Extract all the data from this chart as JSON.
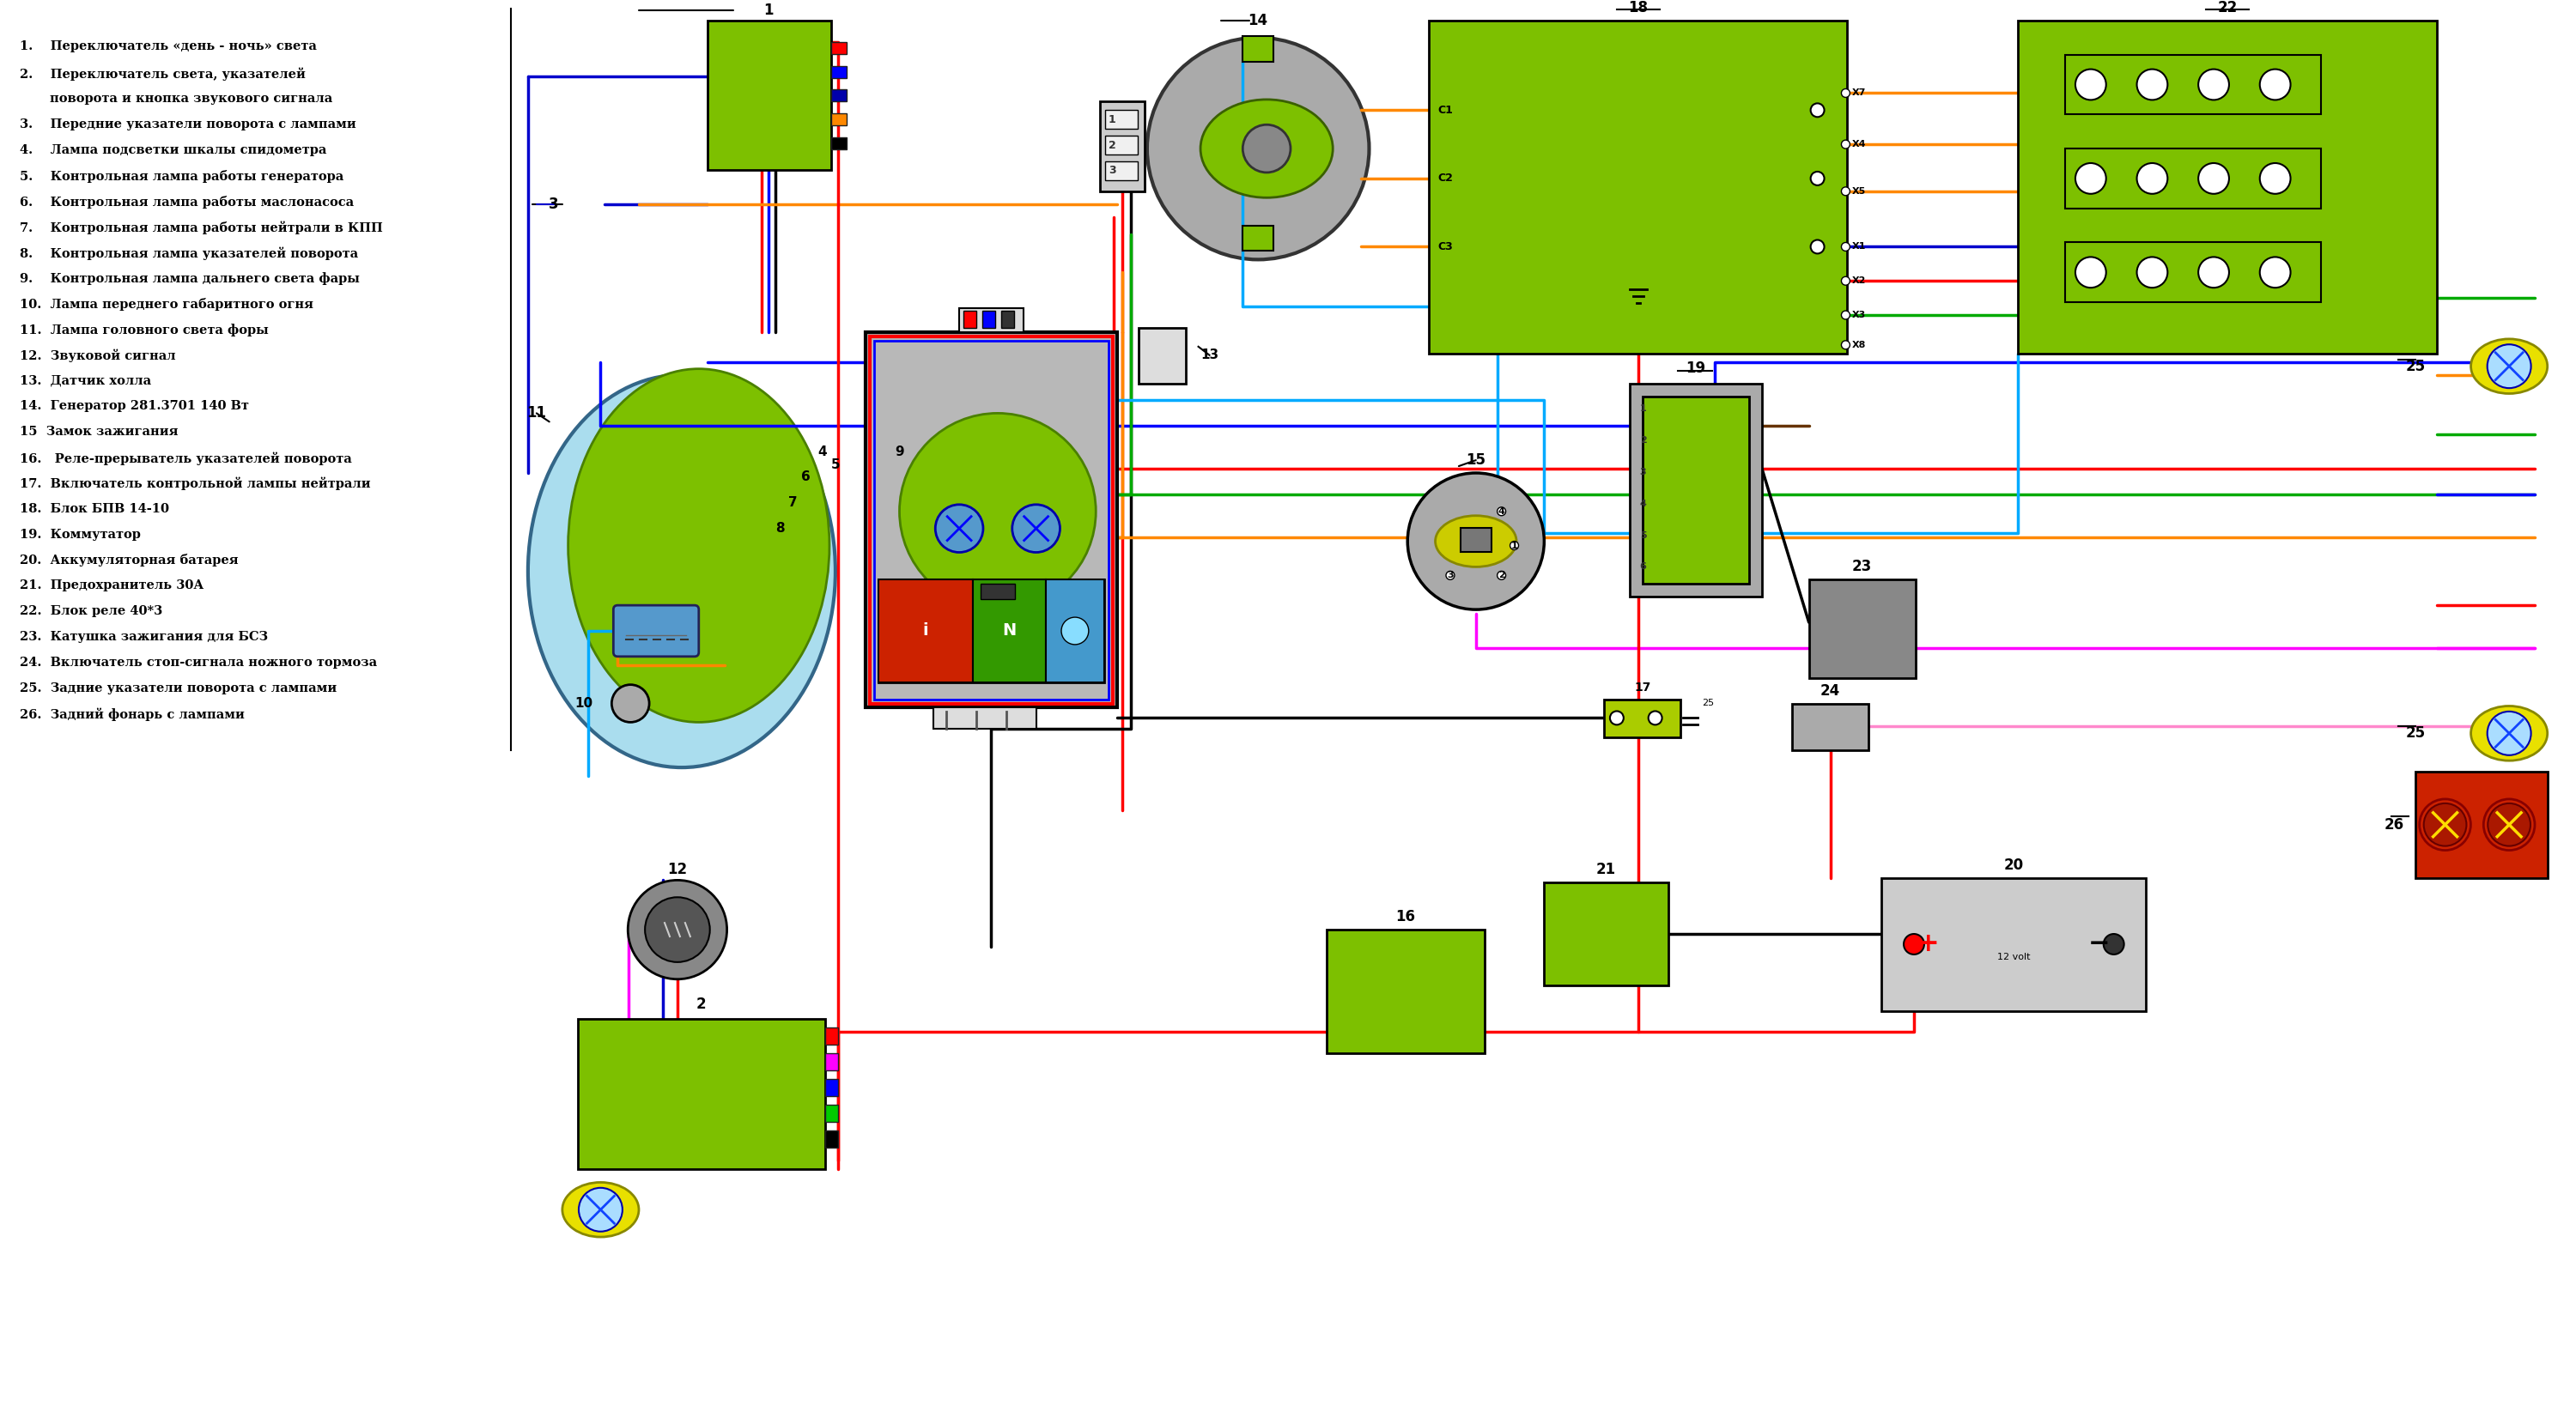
{
  "bg_color": "#ffffff",
  "lw": 2.5,
  "legend_lines": [
    [
      15,
      38,
      "1.    Переключатель «день - ночь» света"
    ],
    [
      15,
      70,
      "2.    Переключатель света, указателей"
    ],
    [
      50,
      100,
      "поворота и кнопка звукового сигнала"
    ],
    [
      15,
      130,
      "3.    Передние указатели поворота с лампами"
    ],
    [
      15,
      160,
      "4.    Лампа подсветки шкалы спидометра"
    ],
    [
      15,
      190,
      "5.    Контрольная лампа работы генератора"
    ],
    [
      15,
      220,
      "6.    Контрольная лампа работы маслонасоса"
    ],
    [
      15,
      250,
      "7.    Контрольная лампа работы нейтрали в КПП"
    ],
    [
      15,
      280,
      "8.    Контрольная лампа указателей поворота"
    ],
    [
      15,
      310,
      "9.    Контрольная лампа дальнего света фары"
    ],
    [
      15,
      340,
      "10.  Лампа переднего габаритного огня"
    ],
    [
      15,
      370,
      "11.  Лампа головного света форы"
    ],
    [
      15,
      400,
      "12.  Звуковой сигнал"
    ],
    [
      15,
      430,
      "13.  Датчик холла"
    ],
    [
      15,
      460,
      "14.  Генератор 281.3701 140 Вт"
    ],
    [
      15,
      490,
      "15  Замок зажигания"
    ],
    [
      15,
      520,
      "16.   Реле-прерыватель указателей поворота"
    ],
    [
      15,
      550,
      "17.  Включатель контрольной лампы нейтрали"
    ],
    [
      15,
      580,
      "18.  Блок БПВ 14-10"
    ],
    [
      15,
      610,
      "19.  Коммутатор"
    ],
    [
      15,
      640,
      "20.  Аккумуляторная батарея"
    ],
    [
      15,
      670,
      "21.  Предохранитель 30А"
    ],
    [
      15,
      700,
      "22.  Блок реле 40*3"
    ],
    [
      15,
      730,
      "23.  Катушка зажигания для БСЗ"
    ],
    [
      15,
      760,
      "24.  Включатель стоп-сигнала ножного тормоза"
    ],
    [
      15,
      790,
      "25.  Задние указатели поворота с лампами"
    ],
    [
      15,
      820,
      "26.  Задний фонарь с лампами"
    ]
  ]
}
